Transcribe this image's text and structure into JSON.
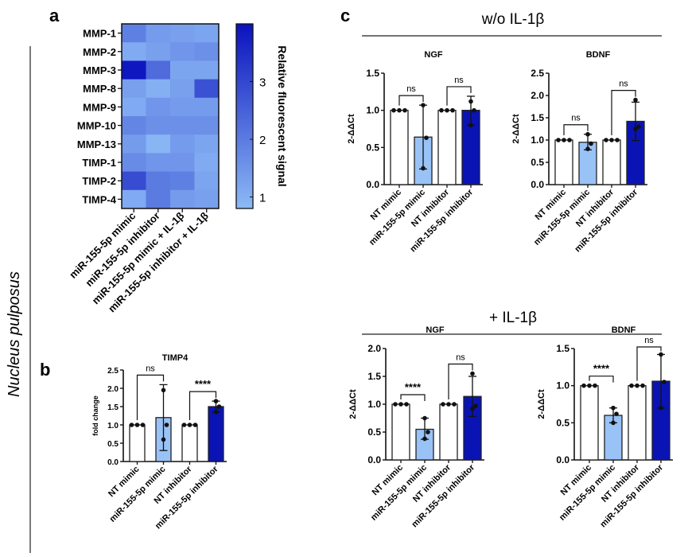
{
  "figure": {
    "panel_labels": [
      "a",
      "b",
      "c"
    ],
    "side_label": "Nucleus pulposus",
    "group_headers": [
      "w/o IL-1β",
      "+ IL-1β"
    ]
  },
  "colors": {
    "light_bar": "#99c2f7",
    "dark_bar": "#0a14b4",
    "open_bar": "#ffffff",
    "heat_low": "#8cbaf6",
    "heat_high": "#0a12be"
  },
  "chart_data": [
    {
      "id": "a",
      "type": "heatmap",
      "rows": [
        "MMP-1",
        "MMP-2",
        "MMP-3",
        "MMP-8",
        "MMP-9",
        "MMP-10",
        "MMP-13",
        "TIMP-1",
        "TIMP-2",
        "TIMP-4"
      ],
      "columns": [
        "miR-155-5p mimic",
        "miR-155-5p inhibitor",
        "miR-155-5p mimic + IL-1β",
        "miR-155-5p inhibitor + IL-1β"
      ],
      "values": [
        [
          1.9,
          1.4,
          1.3,
          1.2
        ],
        [
          1.1,
          1.3,
          1.5,
          1.6
        ],
        [
          3.9,
          2.3,
          1.2,
          1.2
        ],
        [
          1.3,
          1.0,
          1.3,
          2.8
        ],
        [
          1.1,
          1.5,
          1.4,
          1.4
        ],
        [
          1.8,
          1.6,
          1.6,
          1.6
        ],
        [
          1.4,
          0.9,
          1.4,
          1.2
        ],
        [
          1.7,
          1.5,
          1.5,
          1.1
        ],
        [
          2.9,
          2.0,
          1.9,
          1.2
        ],
        [
          1.1,
          2.0,
          1.4,
          1.3
        ]
      ],
      "colorbar": {
        "label": "Relative fluorescent signal",
        "ticks": [
          1,
          2,
          3
        ],
        "range": [
          0.8,
          4.0
        ]
      }
    },
    {
      "id": "b",
      "type": "bar",
      "title": "TIMP4",
      "ylabel": "fold change",
      "ylim": [
        0,
        2.5
      ],
      "yticks": [
        "0.0",
        "0.5",
        "1.0",
        "1.5",
        "2.0",
        "2.5"
      ],
      "categories": [
        "NT mimic",
        "miR-155-5p mimic",
        "NT inhibitor",
        "miR-155-5p inhibitor"
      ],
      "values": [
        1.0,
        1.2,
        1.0,
        1.5
      ],
      "errors": [
        null,
        [
          0.3,
          2.1
        ],
        null,
        [
          1.35,
          1.65
        ]
      ],
      "points": [
        [
          1,
          1,
          1
        ],
        [
          1.95,
          1.0,
          0.6
        ],
        [
          1,
          1,
          1
        ],
        [
          1.65,
          1.5,
          1.35
        ]
      ],
      "significance": [
        {
          "pair": [
            0,
            1
          ],
          "label": "ns"
        },
        {
          "pair": [
            2,
            3
          ],
          "label": "****"
        }
      ]
    },
    {
      "id": "c-noil-ngf",
      "type": "bar",
      "title": "NGF",
      "ylabel": "2-ΔΔCt",
      "ylim": [
        0,
        1.5
      ],
      "yticks": [
        "0.0",
        "0.5",
        "1.0",
        "1.5"
      ],
      "categories": [
        "NT mimic",
        "miR-155-5p mimic",
        "NT inhibitor",
        "miR-155-5p inhibitor"
      ],
      "values": [
        1.0,
        0.64,
        1.0,
        1.0
      ],
      "errors": [
        null,
        [
          0.21,
          1.07
        ],
        null,
        [
          0.8,
          1.19
        ]
      ],
      "points": [
        [
          1,
          1,
          1
        ],
        [
          1.07,
          0.63,
          0.22
        ],
        [
          1,
          1,
          1
        ],
        [
          1.12,
          1.0,
          0.8
        ]
      ],
      "significance": [
        {
          "pair": [
            0,
            1
          ],
          "label": "ns"
        },
        {
          "pair": [
            2,
            3
          ],
          "label": "ns"
        }
      ]
    },
    {
      "id": "c-noil-bdnf",
      "type": "bar",
      "title": "BDNF",
      "ylabel": "2-ΔΔCt",
      "ylim": [
        0,
        2.5
      ],
      "yticks": [
        "0.0",
        "0.5",
        "1.0",
        "1.5",
        "2.0",
        "2.5"
      ],
      "categories": [
        "NT mimic",
        "miR-155-5p mimic",
        "NT inhibitor",
        "miR-155-5p inhibitor"
      ],
      "values": [
        1.0,
        0.95,
        1.0,
        1.42
      ],
      "errors": [
        null,
        [
          0.78,
          1.13
        ],
        null,
        [
          0.99,
          1.85
        ]
      ],
      "points": [
        [
          1,
          1,
          1
        ],
        [
          1.13,
          0.92,
          0.8
        ],
        [
          1,
          1,
          1
        ],
        [
          1.9,
          1.3,
          1.25
        ]
      ],
      "significance": [
        {
          "pair": [
            0,
            1
          ],
          "label": "ns"
        },
        {
          "pair": [
            2,
            3
          ],
          "label": "ns"
        }
      ]
    },
    {
      "id": "c-il-ngf",
      "type": "bar",
      "title": "NGF",
      "ylabel": "2-ΔΔCt",
      "ylim": [
        0,
        2.0
      ],
      "yticks": [
        "0.0",
        "0.5",
        "1.0",
        "1.5",
        "2.0"
      ],
      "categories": [
        "NT mimic",
        "miR-155-5p mimic",
        "NT inhibitor",
        "miR-155-5p inhibitor"
      ],
      "values": [
        1.0,
        0.55,
        1.0,
        1.14
      ],
      "errors": [
        null,
        [
          0.37,
          0.75
        ],
        null,
        [
          0.78,
          1.5
        ]
      ],
      "points": [
        [
          1,
          1,
          1
        ],
        [
          0.75,
          0.5,
          0.38
        ],
        [
          1,
          1,
          1
        ],
        [
          1.55,
          0.97,
          0.92
        ]
      ],
      "significance": [
        {
          "pair": [
            0,
            1
          ],
          "label": "****"
        },
        {
          "pair": [
            2,
            3
          ],
          "label": "ns"
        }
      ]
    },
    {
      "id": "c-il-bdnf",
      "type": "bar",
      "title": "BDNF",
      "ylabel": "2-ΔΔCt",
      "ylim": [
        0,
        1.5
      ],
      "yticks": [
        "0.0",
        "0.5",
        "1.0",
        "1.5"
      ],
      "categories": [
        "NT mimic",
        "miR-155-5p mimic",
        "NT inhibitor",
        "miR-155-5p inhibitor"
      ],
      "values": [
        1.0,
        0.6,
        1.0,
        1.06
      ],
      "errors": [
        null,
        [
          0.5,
          0.7
        ],
        null,
        [
          0.7,
          1.42
        ]
      ],
      "points": [
        [
          1,
          1,
          1
        ],
        [
          0.7,
          0.62,
          0.5
        ],
        [
          1,
          1,
          1
        ],
        [
          1.42,
          1.05,
          0.7
        ]
      ],
      "significance": [
        {
          "pair": [
            0,
            1
          ],
          "label": "****"
        },
        {
          "pair": [
            2,
            3
          ],
          "label": "ns"
        }
      ]
    }
  ]
}
